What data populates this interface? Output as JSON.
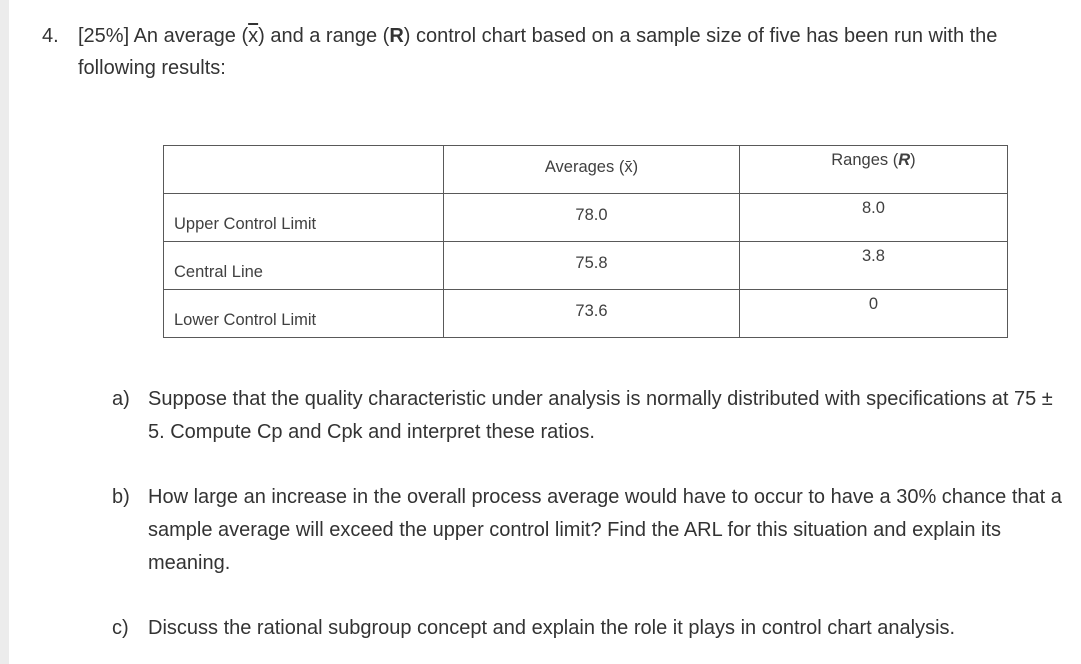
{
  "question": {
    "number": "4.",
    "line1_before": "[25%] An average (",
    "xbar_symbol": "x",
    "line1_mid": ") and a range (",
    "range_symbol": "R",
    "line1_after": ") control chart based on a sample size of five has been run with the",
    "line2": "following results:"
  },
  "table": {
    "header_averages": "Averages (x̄)",
    "header_ranges_prefix": "Ranges (",
    "header_ranges_symbol": "R",
    "header_ranges_suffix": ")",
    "rows": [
      {
        "label": "Upper Control Limit",
        "average": "78.0",
        "range": "8.0"
      },
      {
        "label": "Central Line",
        "average": "75.8",
        "range": "3.8"
      },
      {
        "label": "Lower Control Limit",
        "average": "73.6",
        "range": "0"
      }
    ]
  },
  "parts": {
    "a": {
      "letter": "a)",
      "text": "Suppose that the quality characteristic under analysis is normally distributed with specifications at 75 ± 5. Compute Cp and Cpk and interpret these ratios."
    },
    "b": {
      "letter": "b)",
      "text": "How large an increase in the overall process average would have to occur to have a 30% chance that a sample average will exceed the upper control limit? Find the ARL for this situation and explain its meaning."
    },
    "c": {
      "letter": "c)",
      "text": "Discuss the rational subgroup concept and explain the role it plays in control chart analysis."
    }
  }
}
